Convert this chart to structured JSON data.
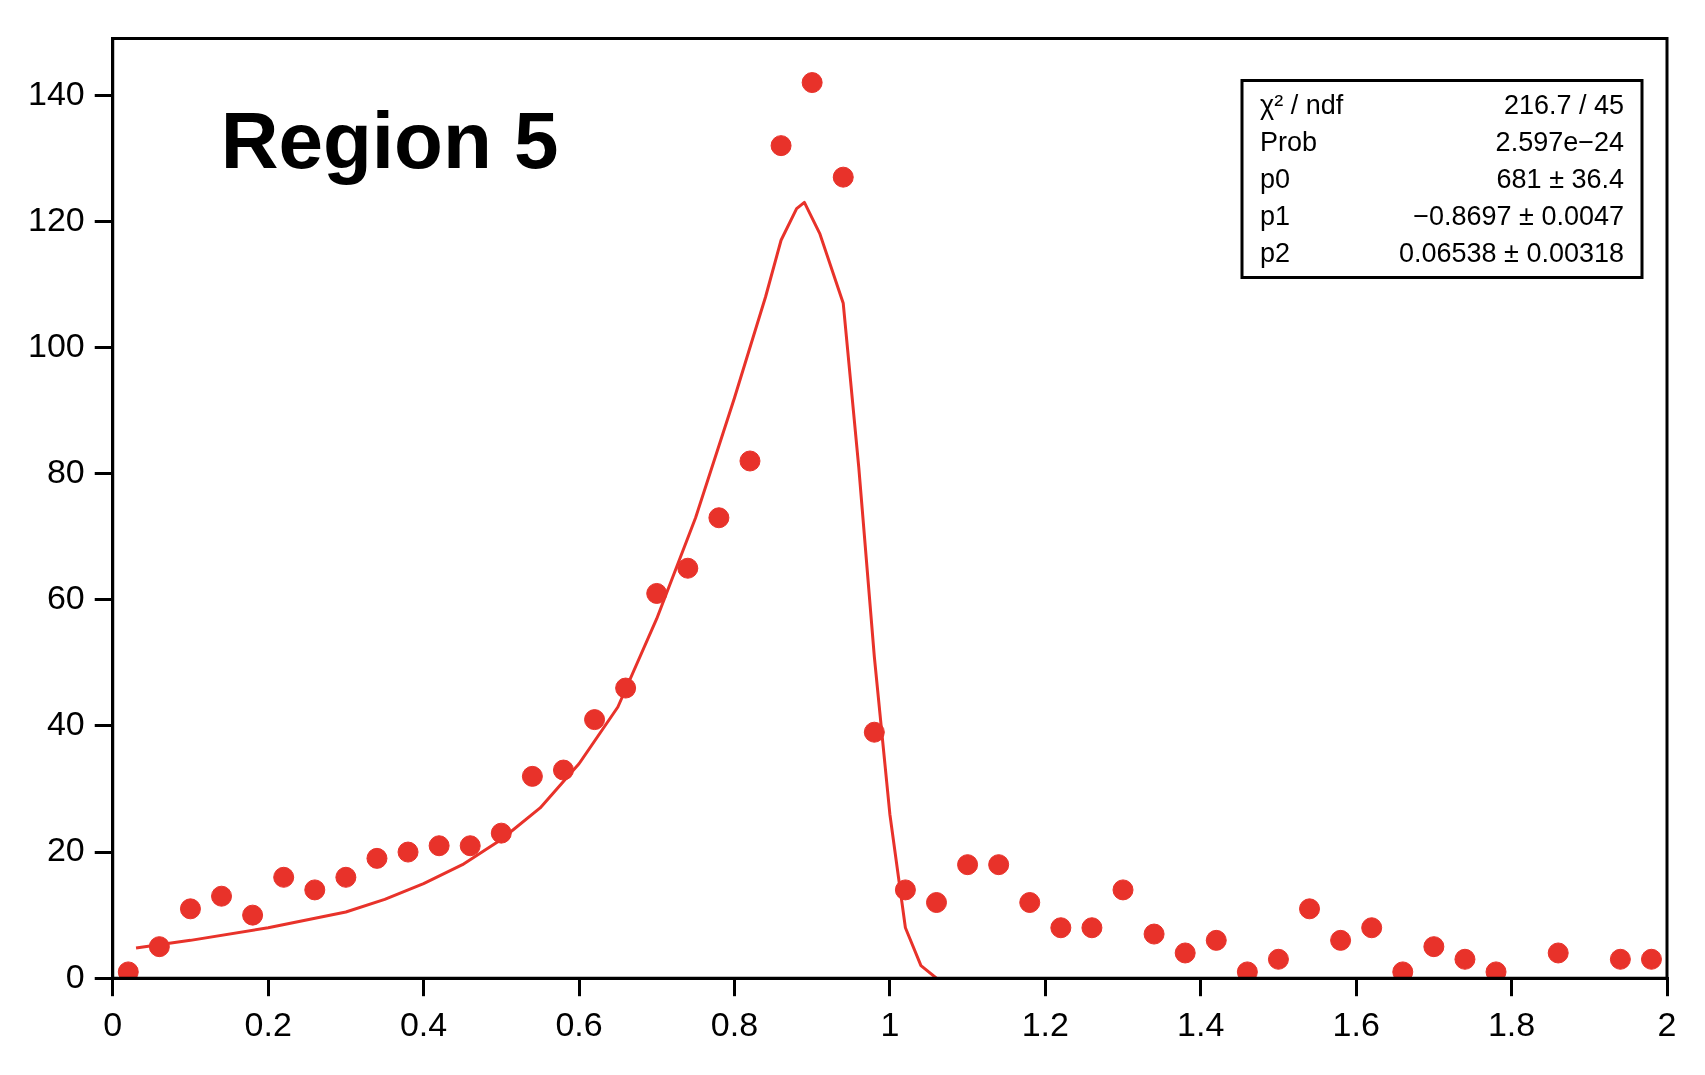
{
  "chart_data": {
    "type": "scatter",
    "title": "Region 5",
    "annotations": [
      "χ² / ndf",
      "216.7 / 45",
      "Prob",
      "2.597e−24",
      "p0",
      "681 ± 36.4",
      "p1",
      "−0.8697 ± 0.0047",
      "p2",
      "0.06538 ± 0.00318"
    ],
    "xlim": [
      0,
      2
    ],
    "xticks": [
      0,
      0.2,
      0.4,
      0.6,
      0.8,
      1,
      1.2,
      1.4,
      1.6,
      1.8,
      2
    ],
    "ylim": [
      0,
      149
    ],
    "yticks": [
      0,
      20,
      40,
      60,
      80,
      100,
      120,
      140
    ],
    "grid": false,
    "legend": false,
    "marker": "circle",
    "series": [
      {
        "color": "#e8322a",
        "x": [
          0.02,
          0.06,
          0.1,
          0.14,
          0.18,
          0.22,
          0.26,
          0.3,
          0.34,
          0.38,
          0.42,
          0.46,
          0.5,
          0.54,
          0.58,
          0.62,
          0.66,
          0.7,
          0.74,
          0.78,
          0.82,
          0.86,
          0.9,
          0.94,
          0.98,
          1.02,
          1.06,
          1.1,
          1.14,
          1.18,
          1.22,
          1.26,
          1.3,
          1.34,
          1.38,
          1.42,
          1.46,
          1.5,
          1.54,
          1.58,
          1.62,
          1.66,
          1.7,
          1.74,
          1.78,
          1.86,
          1.94,
          1.98
        ],
        "values": [
          1,
          5,
          11,
          13,
          10,
          16,
          14,
          16,
          19,
          20,
          21,
          21,
          23,
          32,
          33,
          41,
          46,
          61,
          65,
          73,
          82,
          132,
          142,
          127,
          39,
          14,
          12,
          18,
          18,
          12,
          8,
          8,
          14,
          7,
          4,
          6,
          1,
          3,
          11,
          6,
          8,
          1,
          5,
          3,
          1,
          4,
          3,
          3
        ]
      },
      {
        "type": "line",
        "color": "#e8322a",
        "marker": "none",
        "line_style": "solid",
        "x": [
          0.03,
          0.1,
          0.2,
          0.3,
          0.35,
          0.4,
          0.45,
          0.5,
          0.55,
          0.6,
          0.65,
          0.7,
          0.75,
          0.8,
          0.84,
          0.86,
          0.88,
          0.89,
          0.91,
          0.94,
          0.96,
          0.98,
          1.0,
          1.02,
          1.04,
          1.06
        ],
        "values": [
          4.8,
          6,
          8,
          10.5,
          12.5,
          15,
          18,
          22,
          27,
          34,
          43,
          57,
          73,
          92,
          108,
          117,
          122,
          123,
          118,
          107,
          81,
          51,
          26,
          8,
          2,
          0
        ]
      }
    ]
  }
}
